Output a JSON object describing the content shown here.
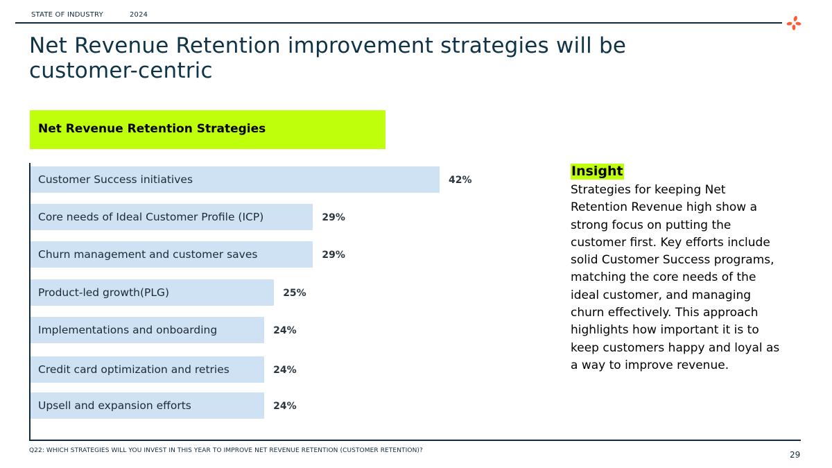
{
  "header": {
    "section": "STATE OF INDUSTRY",
    "year": "2024"
  },
  "title": "Net Revenue Retention improvement strategies will be customer-centric",
  "chart_data": {
    "type": "bar",
    "orientation": "horizontal",
    "title": "Net Revenue Retention Strategies",
    "categories": [
      "Customer Success initiatives",
      "Core needs of Ideal Customer Profile (ICP)",
      "Churn management and customer saves",
      "Product-led growth(PLG)",
      "Implementations and onboarding",
      "Credit card optimization and retries",
      "Upsell and expansion efforts"
    ],
    "values": [
      42,
      29,
      29,
      25,
      24,
      24,
      24
    ],
    "value_labels": [
      "42%",
      "29%",
      "29%",
      "25%",
      "24%",
      "24%",
      "24%"
    ],
    "bar_color": "#cfe2f3",
    "title_bg_color": "#bfff0b",
    "grid": false
  },
  "insight": {
    "heading": "Insight",
    "body": "Strategies for keeping Net\nRetention Revenue high show a\nstrong focus on putting the\ncustomer first. Key efforts include\nsolid Customer Success programs,\nmatching the core needs  of the\nideal customer, and managing\nchurn effectively. This approach\nhighlights how important it is to\nkeep customers happy and loyal as\na way to improve revenue."
  },
  "footnote": "Q22: WHICH STRATEGIES WILL YOU INVEST IN THIS YEAR TO IMPROVE NET REVENUE RETENTION (CUSTOMER RETENTION)?",
  "page_number": "29",
  "colors": {
    "accent": "#bfff0b",
    "logo": "#ff5a36",
    "text": "#0f2a3d"
  },
  "icons": {
    "logo": "asterisk-logo-icon"
  }
}
